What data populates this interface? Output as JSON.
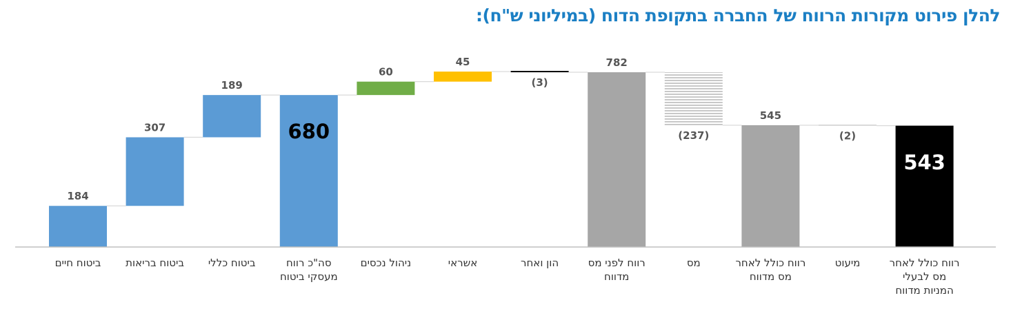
{
  "title": "להלן פירוט מקורות הרווח של החברה בתקופת הדוח (במיליוני ש\"ח):",
  "chart_data": {
    "type": "bar",
    "subtype": "waterfall",
    "title": "להלן פירוט מקורות הרווח של החברה בתקופת הדוח (במיליוני ש\"ח):",
    "xlabel": "",
    "ylabel": "",
    "ylim": [
      0,
      800
    ],
    "grid": false,
    "legend": "none",
    "items": [
      {
        "category": [
          "ביטוח חיים"
        ],
        "value": 184,
        "label": "184",
        "kind": "delta",
        "color": "#5b9bd5"
      },
      {
        "category": [
          "ביטוח בריאות"
        ],
        "value": 307,
        "label": "307",
        "kind": "delta",
        "color": "#5b9bd5"
      },
      {
        "category": [
          "ביטוח כללי"
        ],
        "value": 189,
        "label": "189",
        "kind": "delta",
        "color": "#5b9bd5"
      },
      {
        "category": [
          "סה\"כ רווח",
          "מעסקי ביטוח"
        ],
        "value": 680,
        "label": "680",
        "kind": "total",
        "color": "#5b9bd5",
        "big": true,
        "labelColor": "#000000"
      },
      {
        "category": [
          "ניהול נכסים"
        ],
        "value": 60,
        "label": "60",
        "kind": "delta",
        "color": "#70ad47"
      },
      {
        "category": [
          "אשראי"
        ],
        "value": 45,
        "label": "45",
        "kind": "delta",
        "color": "#ffc000"
      },
      {
        "category": [
          "הון ואחר"
        ],
        "value": -3,
        "label": "(3)",
        "kind": "delta",
        "color": "#000000"
      },
      {
        "category": [
          "רווח לפני מס",
          "מדווח"
        ],
        "value": 782,
        "label": "782",
        "kind": "total",
        "color": "#a6a6a6"
      },
      {
        "category": [
          "מס"
        ],
        "value": -237,
        "label": "(237)",
        "kind": "delta",
        "color": "#d9d9d9",
        "pattern": "hstripes"
      },
      {
        "category": [
          "רווח כולל לאחר",
          "מס מדווח"
        ],
        "value": 545,
        "label": "545",
        "kind": "total",
        "color": "#a6a6a6"
      },
      {
        "category": [
          "מיעוט"
        ],
        "value": -2,
        "label": "(2)",
        "kind": "delta",
        "color": "#d9d9d9"
      },
      {
        "category": [
          "רווח כולל לאחר",
          "מס לבעלי",
          "המניות מדווח"
        ],
        "value": 543,
        "label": "543",
        "kind": "total",
        "color": "#000000",
        "big": true,
        "labelColor": "#ffffff"
      }
    ]
  }
}
